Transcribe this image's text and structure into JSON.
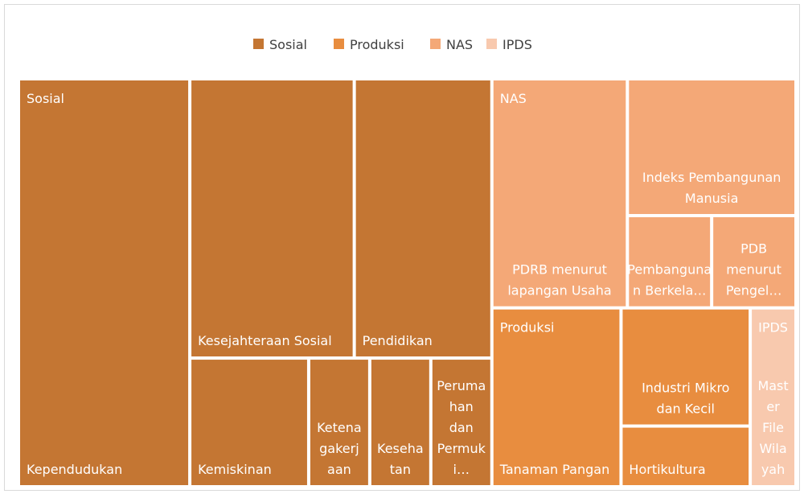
{
  "chart_data": {
    "type": "treemap",
    "groups": [
      {
        "name": "Sosial",
        "color": "#c47633",
        "children": [
          {
            "name": "Kependudukan",
            "value": 9
          },
          {
            "name": "Kesejahteraan Sosial",
            "value": 6
          },
          {
            "name": "Pendidikan",
            "value": 5
          },
          {
            "name": "Kemiskinan",
            "value": 2
          },
          {
            "name": "Ketenagakerjaan",
            "value": 1
          },
          {
            "name": "Kesehatan",
            "value": 1
          },
          {
            "name": "Perumahan dan Permuki…",
            "value": 1
          }
        ]
      },
      {
        "name": "Produksi",
        "color": "#e88d3f",
        "children": [
          {
            "name": "Tanaman Pangan",
            "value": 3
          },
          {
            "name": "Industri Mikro dan Kecil",
            "value": 2
          },
          {
            "name": "Hortikultura",
            "value": 1
          }
        ]
      },
      {
        "name": "NAS",
        "color": "#f4a877",
        "children": [
          {
            "name": "PDRB menurut lapangan Usaha",
            "value": 4
          },
          {
            "name": "Indeks Pembangunan Manusia",
            "value": 3
          },
          {
            "name": "Pembangunan Berkela…",
            "value": 1
          },
          {
            "name": "PDB menurut Pengel…",
            "value": 1
          }
        ]
      },
      {
        "name": "IPDS",
        "color": "#f8c9ae",
        "children": [
          {
            "name": "Master File Wilayah",
            "value": 1
          }
        ]
      }
    ],
    "legend": "top"
  }
}
